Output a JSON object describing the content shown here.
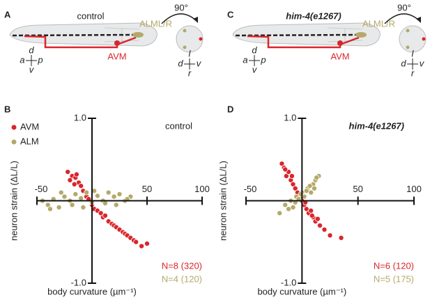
{
  "panel_labels": [
    "A",
    "B",
    "C",
    "D"
  ],
  "schematics": [
    {
      "label": "control",
      "neuron_top": "ALML/R",
      "neuron_bottom": "AVM",
      "rotation": "90°",
      "axes_side": [
        "d",
        "a",
        "p",
        "v"
      ],
      "axes_cross": [
        "l",
        "d",
        "v",
        "r"
      ]
    },
    {
      "label": "him-4(e1267)",
      "neuron_top": "ALML/R",
      "neuron_bottom": "AVM",
      "rotation": "90°",
      "axes_side": [
        "d",
        "a",
        "p",
        "v"
      ],
      "axes_cross": [
        "l",
        "d",
        "v",
        "r"
      ]
    }
  ],
  "chart_data": [
    {
      "type": "scatter",
      "title": "control",
      "x_label": "body curvature (µm⁻¹)",
      "y_label": "neuron strain (ΔL/L)",
      "xlim": [
        -50,
        100
      ],
      "ylim": [
        -1,
        1
      ],
      "xticks": [
        -50,
        50,
        100
      ],
      "yticks": [
        {
          "value": 1,
          "label": "1.0"
        },
        {
          "value": -1,
          "label": "-1.0"
        }
      ],
      "legend": true,
      "annotations": [
        "N=8 (320)",
        "N=4 (120)"
      ],
      "series": [
        {
          "name": "AVM",
          "color": "#d9262c",
          "x": [
            -22,
            -18,
            -15,
            -12,
            -10,
            -8,
            -20,
            -16,
            -5,
            -3,
            0,
            2,
            5,
            8,
            10,
            12,
            15,
            18,
            20,
            22,
            25,
            28,
            30,
            32,
            35,
            38,
            40,
            45,
            50,
            -14
          ],
          "values": [
            0.35,
            0.3,
            0.28,
            0.22,
            0.18,
            0.12,
            0.25,
            0.2,
            0.05,
            0.02,
            -0.05,
            -0.1,
            -0.12,
            -0.15,
            -0.2,
            -0.18,
            -0.25,
            -0.28,
            -0.3,
            -0.32,
            -0.35,
            -0.38,
            -0.4,
            -0.42,
            -0.45,
            -0.48,
            -0.5,
            -0.55,
            -0.52,
            0.32
          ]
        },
        {
          "name": "ALM",
          "color": "#b4a96a",
          "x": [
            -45,
            -40,
            -35,
            -30,
            -25,
            -20,
            -15,
            -10,
            -5,
            0,
            5,
            10,
            15,
            20,
            25,
            30,
            35,
            -38,
            -28,
            -18,
            -8,
            2,
            12,
            22,
            32
          ],
          "values": [
            0,
            -0.05,
            0.02,
            -0.08,
            0.05,
            0,
            0.08,
            0.03,
            0.1,
            -0.02,
            0.06,
            0,
            0.1,
            0.05,
            0.08,
            0,
            0.05,
            -0.1,
            0.1,
            -0.05,
            -0.08,
            0.12,
            -0.03,
            -0.05,
            0.02
          ]
        }
      ]
    },
    {
      "type": "scatter",
      "title": "him-4(e1267)",
      "x_label": "body curvature (µm⁻¹)",
      "y_label": "neuron strain (ΔL/L)",
      "xlim": [
        -50,
        100
      ],
      "ylim": [
        -1,
        1
      ],
      "xticks": [
        -50,
        50,
        100
      ],
      "yticks": [
        {
          "value": 1,
          "label": "1.0"
        },
        {
          "value": -1,
          "label": "-1.0"
        }
      ],
      "legend": false,
      "annotations": [
        "N=6 (120)",
        "N=5 (175)"
      ],
      "series": [
        {
          "name": "AVM",
          "color": "#d9262c",
          "x": [
            -18,
            -16,
            -14,
            -12,
            -10,
            -8,
            -6,
            -4,
            -2,
            0,
            2,
            4,
            6,
            8,
            10,
            12,
            14,
            16,
            20,
            25,
            35,
            -15,
            -9,
            3,
            9
          ],
          "values": [
            0.45,
            0.4,
            0.3,
            0.35,
            0.25,
            0.2,
            0.15,
            0.1,
            0.05,
            0,
            -0.05,
            -0.1,
            -0.15,
            -0.12,
            -0.2,
            -0.25,
            -0.22,
            -0.3,
            -0.35,
            -0.42,
            -0.45,
            0.38,
            0.3,
            -0.02,
            -0.18
          ]
        },
        {
          "name": "ALM",
          "color": "#b4a96a",
          "x": [
            -20,
            -15,
            -12,
            -10,
            -8,
            -5,
            -3,
            0,
            2,
            5,
            8,
            10,
            12,
            15,
            -6,
            -1,
            4,
            7,
            11,
            13
          ],
          "values": [
            -0.15,
            -0.05,
            -0.1,
            0,
            -0.08,
            0.05,
            0.02,
            0.1,
            0.05,
            0.15,
            0.1,
            0.2,
            0.25,
            0.3,
            -0.02,
            0.08,
            0.12,
            0.18,
            0.15,
            0.28
          ]
        }
      ]
    }
  ]
}
